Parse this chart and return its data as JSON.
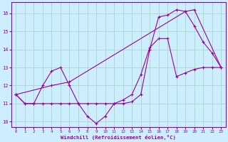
{
  "xlabel": "Windchill (Refroidissement éolien,°C)",
  "background_color": "#cceeff",
  "grid_color": "#b0d8cc",
  "line_color": "#990099",
  "xlim": [
    -0.5,
    23.5
  ],
  "ylim": [
    9.7,
    16.6
  ],
  "xticks": [
    0,
    1,
    2,
    3,
    4,
    5,
    6,
    7,
    8,
    9,
    10,
    11,
    12,
    13,
    14,
    15,
    16,
    17,
    18,
    19,
    20,
    21,
    22,
    23
  ],
  "yticks": [
    10,
    11,
    12,
    13,
    14,
    15,
    16
  ],
  "series1_x": [
    0,
    1,
    2,
    3,
    4,
    5,
    6,
    7,
    8,
    9,
    10,
    11,
    12,
    13,
    14,
    15,
    16,
    17,
    18,
    19,
    20,
    21,
    22,
    23
  ],
  "series1_y": [
    11.5,
    11.0,
    11.0,
    11.0,
    11.0,
    11.0,
    11.0,
    11.0,
    11.0,
    11.0,
    11.0,
    11.0,
    11.2,
    11.5,
    12.6,
    14.1,
    14.6,
    14.6,
    12.5,
    12.7,
    12.9,
    13.0,
    13.0,
    13.0
  ],
  "series2_x": [
    0,
    1,
    2,
    3,
    4,
    5,
    6,
    7,
    8,
    9,
    10,
    11,
    12,
    13,
    14,
    15,
    16,
    17,
    18,
    19,
    20,
    21,
    22,
    23
  ],
  "series2_y": [
    11.5,
    11.0,
    11.0,
    12.0,
    12.8,
    13.0,
    12.0,
    11.0,
    10.3,
    9.9,
    10.3,
    11.0,
    11.0,
    11.1,
    11.5,
    14.0,
    15.8,
    15.9,
    16.2,
    16.1,
    15.3,
    14.4,
    13.8,
    13.0
  ],
  "series3_x": [
    0,
    4,
    6,
    19,
    20,
    23
  ],
  "series3_y": [
    11.5,
    12.0,
    12.2,
    16.1,
    16.2,
    13.0
  ]
}
